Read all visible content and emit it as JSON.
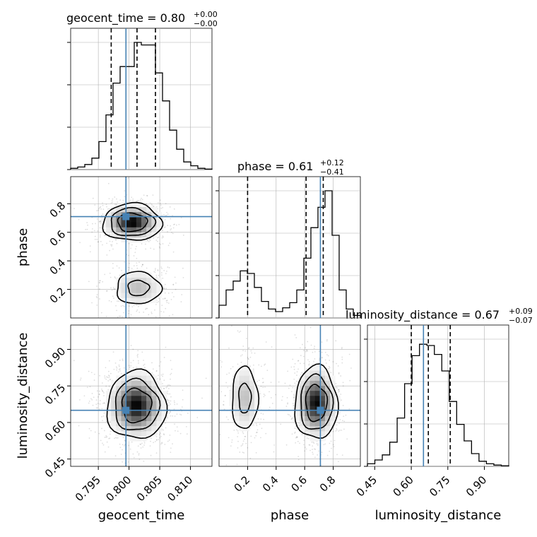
{
  "chart_data": {
    "type": "corner",
    "parameters": [
      "geocent_time",
      "phase",
      "luminosity_distance"
    ],
    "truths": {
      "geocent_time": 0.7995,
      "phase": 0.71,
      "luminosity_distance": 0.65
    },
    "titles": [
      {
        "param": "geocent_time",
        "value": "0.80",
        "plus": "+0.00",
        "minus": "−0.00"
      },
      {
        "param": "phase",
        "value": "0.61",
        "plus": "+0.12",
        "minus": "−0.41"
      },
      {
        "param": "luminosity_distance",
        "value": "0.67",
        "plus": "+0.09",
        "minus": "−0.07"
      }
    ],
    "ranges": {
      "geocent_time": [
        0.7905,
        0.8135
      ],
      "phase": [
        0.0,
        0.99
      ],
      "luminosity_distance": [
        0.42,
        1.0
      ]
    },
    "ticks": {
      "geocent_time": [
        0.795,
        0.8,
        0.805,
        0.81
      ],
      "phase": [
        0.2,
        0.4,
        0.6,
        0.8
      ],
      "luminosity_distance": [
        0.45,
        0.6,
        0.75,
        0.9
      ]
    },
    "tick_labels": {
      "geocent_time": [
        "0.795",
        "0.800",
        "0.805",
        "0.810"
      ],
      "phase": [
        "0.2",
        "0.4",
        "0.6",
        "0.8"
      ],
      "luminosity_distance": [
        "0.45",
        "0.60",
        "0.75",
        "0.90"
      ]
    },
    "histograms": {
      "geocent_time": {
        "edges": [
          0.7905,
          0.8135
        ],
        "counts": [
          0.01,
          0.02,
          0.04,
          0.09,
          0.22,
          0.43,
          0.68,
          0.81,
          0.81,
          1.0,
          0.98,
          0.98,
          0.76,
          0.54,
          0.31,
          0.16,
          0.06,
          0.03,
          0.01,
          0.004
        ],
        "quantiles": [
          0.7971,
          0.8013,
          0.8043
        ]
      },
      "phase": {
        "edges": [
          0.0,
          0.99
        ],
        "counts": [
          0.1,
          0.22,
          0.29,
          0.37,
          0.35,
          0.24,
          0.13,
          0.07,
          0.05,
          0.08,
          0.12,
          0.22,
          0.47,
          0.71,
          0.87,
          1.0,
          0.65,
          0.22,
          0.07,
          0.02
        ],
        "quantiles": [
          0.2,
          0.61,
          0.73
        ]
      },
      "luminosity_distance": {
        "edges": [
          0.42,
          1.0
        ],
        "counts": [
          0.02,
          0.05,
          0.09,
          0.19,
          0.38,
          0.65,
          0.87,
          0.96,
          0.95,
          0.88,
          0.75,
          0.51,
          0.33,
          0.2,
          0.1,
          0.04,
          0.02,
          0.01,
          0.005
        ],
        "quantiles": [
          0.6,
          0.67,
          0.76
        ]
      }
    },
    "density_modes": {
      "geocent_time_phase": [
        {
          "x": 0.8005,
          "y": 0.67,
          "sx": 0.0024,
          "sy": 0.065,
          "w": 1.0
        },
        {
          "x": 0.8015,
          "y": 0.21,
          "sx": 0.0024,
          "sy": 0.075,
          "w": 0.42
        }
      ],
      "geocent_time_luminosity_distance": [
        {
          "x": 0.8012,
          "y": 0.67,
          "sx": 0.0024,
          "sy": 0.07,
          "w": 1.0
        }
      ],
      "phase_luminosity_distance": [
        {
          "x": 0.68,
          "y": 0.68,
          "sx": 0.075,
          "sy": 0.075,
          "w": 1.0
        },
        {
          "x": 0.18,
          "y": 0.7,
          "sx": 0.06,
          "sy": 0.085,
          "w": 0.42
        }
      ]
    },
    "colors": {
      "truth": "#4682b4",
      "hist": "#000000",
      "grid": "#b0b0b0"
    },
    "grid": true
  }
}
